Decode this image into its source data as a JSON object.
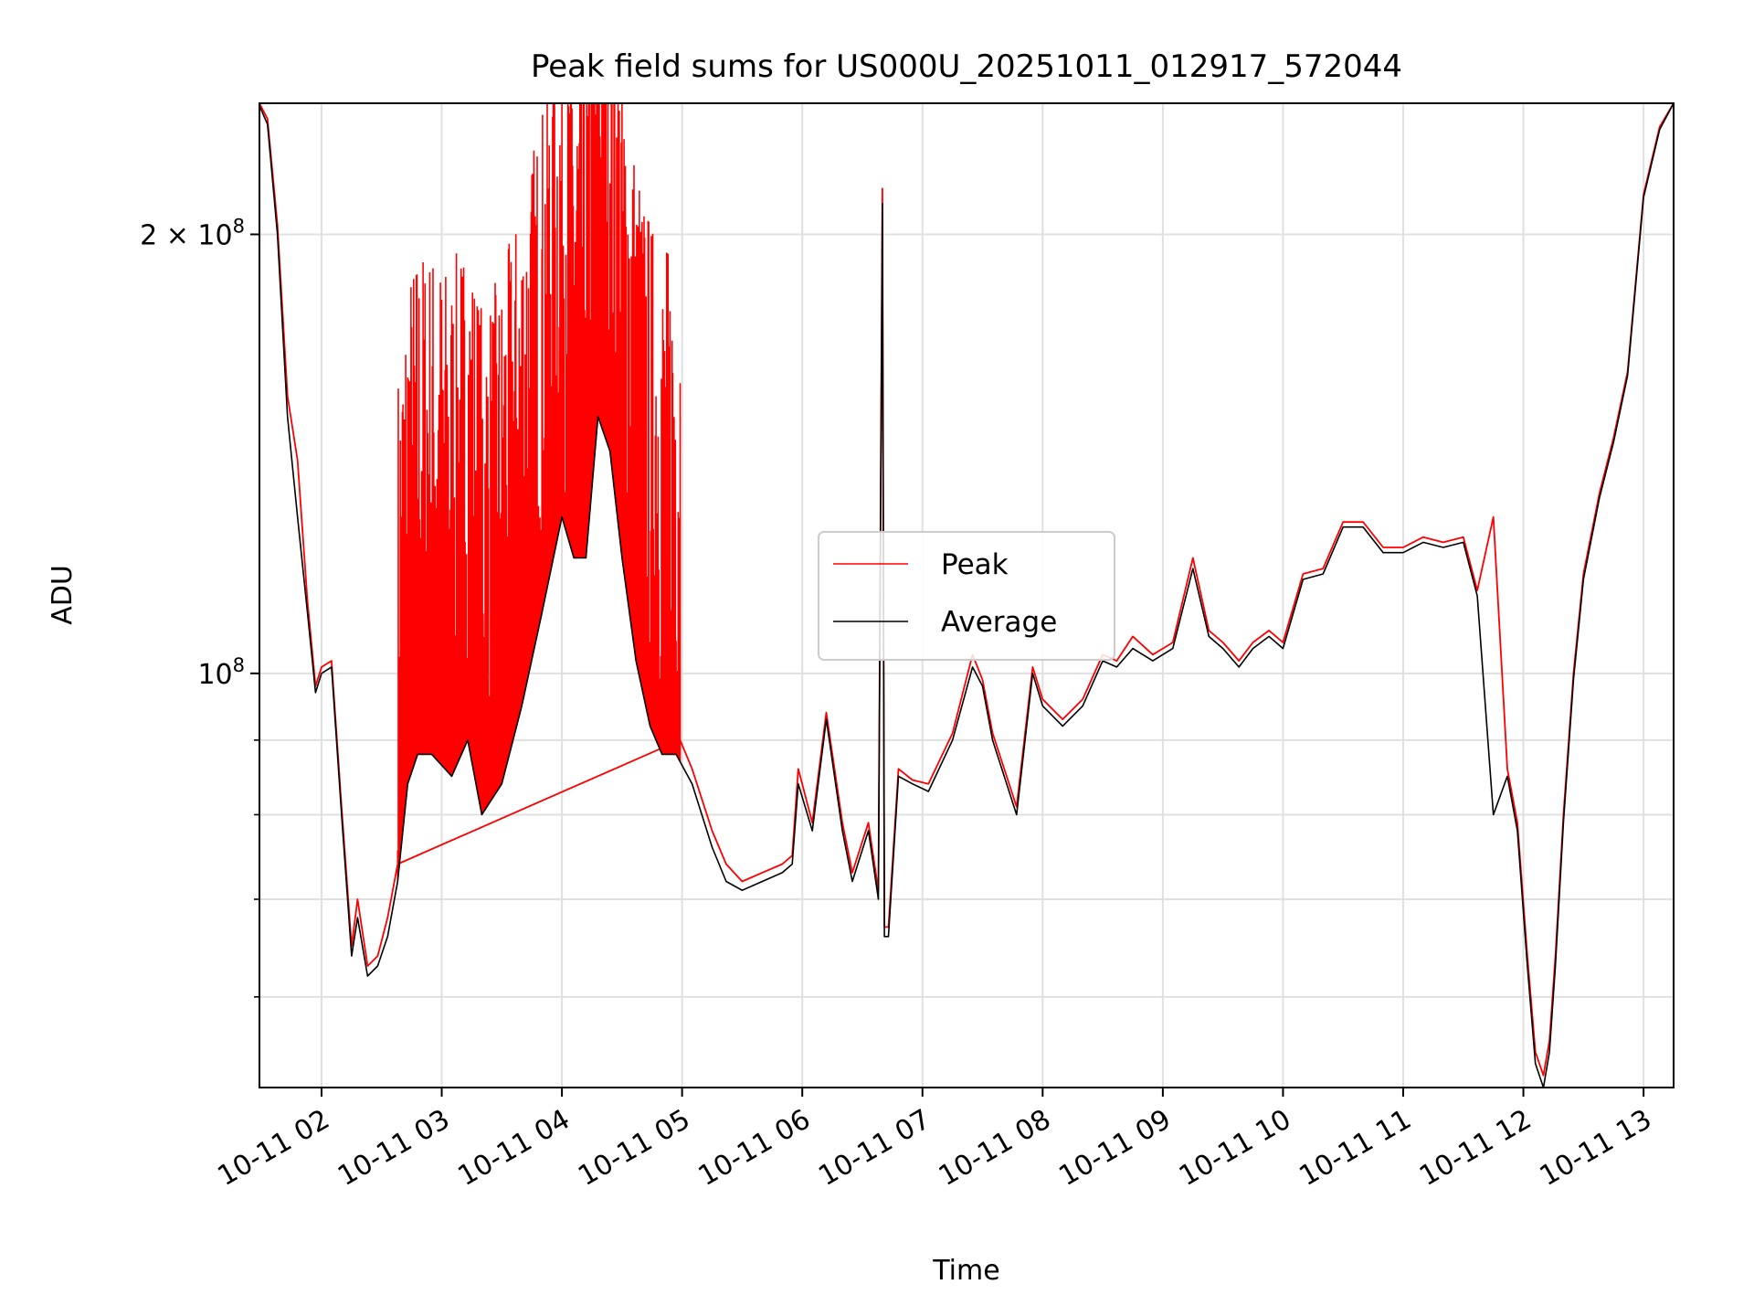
{
  "chart_data": {
    "type": "line",
    "title": "Peak field sums for US000U_20251011_012917_572044",
    "xlabel": "Time",
    "ylabel": "ADU",
    "y_scale": "log",
    "ylim": [
      52000000,
      246000000
    ],
    "xlim": [
      "2025-10-11 01:29",
      "2025-10-11 13:15"
    ],
    "x_ticks": [
      "10-11 02",
      "10-11 03",
      "10-11 04",
      "10-11 05",
      "10-11 06",
      "10-11 07",
      "10-11 08",
      "10-11 09",
      "10-11 10",
      "10-11 11",
      "10-11 12",
      "10-11 13"
    ],
    "y_ticks": [
      {
        "value": 100000000,
        "base": "10",
        "exp": "8",
        "coef": ""
      },
      {
        "value": 200000000,
        "base": "10",
        "exp": "8",
        "coef": "2 × "
      }
    ],
    "y_minor_ticks": [
      60000000,
      70000000,
      80000000,
      90000000
    ],
    "grid": true,
    "legend_position": "center-right",
    "legend": [
      "Peak",
      "Average"
    ],
    "colors": {
      "Peak": "#ff0000",
      "Average": "#000000"
    },
    "noisy_band": {
      "description_series": "Peak",
      "segments": [
        {
          "from": "2025-10-11 02:38",
          "to": "2025-10-11 04:59"
        }
      ],
      "upper_limit": 246000000
    },
    "series": [
      {
        "name": "Average",
        "x": [
          "2025-10-11 01:29",
          "2025-10-11 01:33",
          "2025-10-11 01:38",
          "2025-10-11 01:43",
          "2025-10-11 01:48",
          "2025-10-11 01:53",
          "2025-10-11 01:57",
          "2025-10-11 02:00",
          "2025-10-11 02:05",
          "2025-10-11 02:10",
          "2025-10-11 02:15",
          "2025-10-11 02:18",
          "2025-10-11 02:23",
          "2025-10-11 02:28",
          "2025-10-11 02:33",
          "2025-10-11 02:38",
          "2025-10-11 02:43",
          "2025-10-11 02:48",
          "2025-10-11 02:55",
          "2025-10-11 03:05",
          "2025-10-11 03:13",
          "2025-10-11 03:20",
          "2025-10-11 03:30",
          "2025-10-11 03:40",
          "2025-10-11 03:50",
          "2025-10-11 04:00",
          "2025-10-11 04:06",
          "2025-10-11 04:12",
          "2025-10-11 04:18",
          "2025-10-11 04:24",
          "2025-10-11 04:30",
          "2025-10-11 04:37",
          "2025-10-11 04:44",
          "2025-10-11 04:50",
          "2025-10-11 04:57",
          "2025-10-11 05:05",
          "2025-10-11 05:15",
          "2025-10-11 05:22",
          "2025-10-11 05:30",
          "2025-10-11 05:40",
          "2025-10-11 05:50",
          "2025-10-11 05:55",
          "2025-10-11 05:58",
          "2025-10-11 06:05",
          "2025-10-11 06:12",
          "2025-10-11 06:20",
          "2025-10-11 06:25",
          "2025-10-11 06:33",
          "2025-10-11 06:38",
          "2025-10-11 06:40",
          "2025-10-11 06:41",
          "2025-10-11 06:43",
          "2025-10-11 06:48",
          "2025-10-11 06:55",
          "2025-10-11 07:03",
          "2025-10-11 07:15",
          "2025-10-11 07:25",
          "2025-10-11 07:30",
          "2025-10-11 07:35",
          "2025-10-11 07:47",
          "2025-10-11 07:55",
          "2025-10-11 08:00",
          "2025-10-11 08:10",
          "2025-10-11 08:20",
          "2025-10-11 08:30",
          "2025-10-11 08:37",
          "2025-10-11 08:45",
          "2025-10-11 08:55",
          "2025-10-11 09:05",
          "2025-10-11 09:15",
          "2025-10-11 09:23",
          "2025-10-11 09:30",
          "2025-10-11 09:38",
          "2025-10-11 09:45",
          "2025-10-11 09:53",
          "2025-10-11 10:00",
          "2025-10-11 10:10",
          "2025-10-11 10:20",
          "2025-10-11 10:30",
          "2025-10-11 10:40",
          "2025-10-11 10:50",
          "2025-10-11 11:00",
          "2025-10-11 11:10",
          "2025-10-11 11:20",
          "2025-10-11 11:30",
          "2025-10-11 11:37",
          "2025-10-11 11:45",
          "2025-10-11 11:52",
          "2025-10-11 11:57",
          "2025-10-11 12:02",
          "2025-10-11 12:06",
          "2025-10-11 12:10",
          "2025-10-11 12:13",
          "2025-10-11 12:16",
          "2025-10-11 12:20",
          "2025-10-11 12:25",
          "2025-10-11 12:30",
          "2025-10-11 12:38",
          "2025-10-11 12:45",
          "2025-10-11 12:52",
          "2025-10-11 13:00",
          "2025-10-11 13:08",
          "2025-10-11 13:15"
        ],
        "values": [
          245000000,
          238000000,
          200000000,
          150000000,
          128000000,
          110000000,
          97000000,
          100000000,
          101000000,
          80000000,
          64000000,
          68000000,
          62000000,
          63000000,
          66000000,
          72000000,
          84000000,
          88000000,
          88000000,
          85000000,
          90000000,
          80000000,
          84000000,
          95000000,
          110000000,
          128000000,
          120000000,
          120000000,
          150000000,
          142000000,
          120000000,
          102000000,
          92000000,
          88000000,
          88000000,
          84000000,
          76000000,
          72000000,
          71000000,
          72000000,
          73000000,
          74000000,
          84000000,
          78000000,
          93000000,
          78000000,
          72000000,
          78000000,
          70000000,
          210000000,
          66000000,
          66000000,
          85000000,
          84000000,
          83000000,
          90000000,
          101000000,
          98000000,
          90000000,
          80000000,
          100000000,
          95000000,
          92000000,
          95000000,
          102000000,
          101000000,
          104000000,
          102000000,
          104000000,
          118000000,
          106000000,
          104000000,
          101000000,
          104000000,
          106000000,
          104000000,
          116000000,
          117000000,
          126000000,
          126000000,
          121000000,
          121000000,
          123000000,
          122000000,
          123000000,
          113000000,
          80000000,
          85000000,
          78000000,
          63000000,
          54000000,
          52000000,
          55000000,
          63000000,
          79000000,
          99000000,
          116000000,
          132000000,
          144000000,
          160000000,
          212000000,
          236000000,
          246000000
        ]
      },
      {
        "name": "Peak",
        "x": [
          "2025-10-11 01:29",
          "2025-10-11 01:33",
          "2025-10-11 01:38",
          "2025-10-11 01:43",
          "2025-10-11 01:48",
          "2025-10-11 01:53",
          "2025-10-11 01:57",
          "2025-10-11 02:00",
          "2025-10-11 02:05",
          "2025-10-11 02:10",
          "2025-10-11 02:15",
          "2025-10-11 02:18",
          "2025-10-11 02:23",
          "2025-10-11 02:28",
          "2025-10-11 02:33",
          "2025-10-11 02:38",
          "2025-10-11 04:59",
          "2025-10-11 05:05",
          "2025-10-11 05:15",
          "2025-10-11 05:22",
          "2025-10-11 05:30",
          "2025-10-11 05:40",
          "2025-10-11 05:50",
          "2025-10-11 05:55",
          "2025-10-11 05:58",
          "2025-10-11 06:05",
          "2025-10-11 06:12",
          "2025-10-11 06:20",
          "2025-10-11 06:25",
          "2025-10-11 06:33",
          "2025-10-11 06:38",
          "2025-10-11 06:40",
          "2025-10-11 06:41",
          "2025-10-11 06:43",
          "2025-10-11 06:48",
          "2025-10-11 06:55",
          "2025-10-11 07:03",
          "2025-10-11 07:15",
          "2025-10-11 07:25",
          "2025-10-11 07:30",
          "2025-10-11 07:35",
          "2025-10-11 07:47",
          "2025-10-11 07:55",
          "2025-10-11 08:00",
          "2025-10-11 08:10",
          "2025-10-11 08:20",
          "2025-10-11 08:30",
          "2025-10-11 08:37",
          "2025-10-11 08:45",
          "2025-10-11 08:55",
          "2025-10-11 09:05",
          "2025-10-11 09:15",
          "2025-10-11 09:23",
          "2025-10-11 09:30",
          "2025-10-11 09:38",
          "2025-10-11 09:45",
          "2025-10-11 09:53",
          "2025-10-11 10:00",
          "2025-10-11 10:10",
          "2025-10-11 10:20",
          "2025-10-11 10:30",
          "2025-10-11 10:40",
          "2025-10-11 10:50",
          "2025-10-11 11:00",
          "2025-10-11 11:10",
          "2025-10-11 11:20",
          "2025-10-11 11:30",
          "2025-10-11 11:37",
          "2025-10-11 11:45",
          "2025-10-11 11:52",
          "2025-10-11 11:57",
          "2025-10-11 12:02",
          "2025-10-11 12:06",
          "2025-10-11 12:10",
          "2025-10-11 12:13",
          "2025-10-11 12:16",
          "2025-10-11 12:20",
          "2025-10-11 12:25",
          "2025-10-11 12:30",
          "2025-10-11 12:38",
          "2025-10-11 12:45",
          "2025-10-11 12:52",
          "2025-10-11 13:00",
          "2025-10-11 13:08",
          "2025-10-11 13:15"
        ],
        "values": [
          246000000,
          240000000,
          203000000,
          155000000,
          140000000,
          112000000,
          98000000,
          101000000,
          102000000,
          81000000,
          65000000,
          70000000,
          63000000,
          64000000,
          68000000,
          74000000,
          90000000,
          86000000,
          78000000,
          74000000,
          72000000,
          73000000,
          74000000,
          75000000,
          86000000,
          79000000,
          94000000,
          79000000,
          73000000,
          79000000,
          71000000,
          215000000,
          67000000,
          67000000,
          86000000,
          84500000,
          84000000,
          91000000,
          103000000,
          99000000,
          91000000,
          81000000,
          101000000,
          96000000,
          93000000,
          96000000,
          103000000,
          102000000,
          106000000,
          103000000,
          105000000,
          120000000,
          107000000,
          105000000,
          102000000,
          105000000,
          107000000,
          105000000,
          117000000,
          118000000,
          127000000,
          127000000,
          122000000,
          122000000,
          124000000,
          123000000,
          124000000,
          114000000,
          128000000,
          86000000,
          79000000,
          64000000,
          55000000,
          53000000,
          56000000,
          64000000,
          80000000,
          100000000,
          117000000,
          133000000,
          145000000,
          161000000,
          213000000,
          237000000,
          246000000
        ]
      }
    ]
  }
}
